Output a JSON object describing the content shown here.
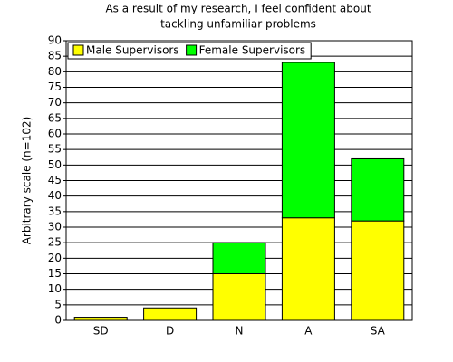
{
  "chart_data": {
    "type": "stacked_bar",
    "title": [
      "As a result of my research, I feel confident about",
      "tackling unfamiliar problems"
    ],
    "y_label": "Arbitrary scale (n=102)",
    "categories": [
      "SD",
      "D",
      "N",
      "A",
      "SA"
    ],
    "series": [
      {
        "name": "Male Supervisors",
        "color": "#ffff00",
        "values": [
          1,
          4,
          15,
          33,
          32
        ]
      },
      {
        "name": "Female Supervisors",
        "color": "#00ff00",
        "values": [
          0,
          0,
          10,
          50,
          20
        ]
      }
    ],
    "ylim": [
      0,
      90
    ],
    "yticks": [
      0,
      5,
      10,
      15,
      20,
      25,
      30,
      35,
      40,
      45,
      50,
      55,
      60,
      65,
      70,
      75,
      80,
      85,
      90
    ],
    "grid": true,
    "legend": "top-left"
  }
}
